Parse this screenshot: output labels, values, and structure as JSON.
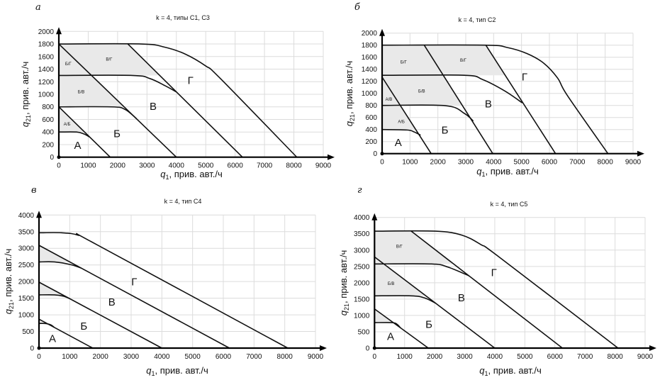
{
  "chart_data": [
    {
      "type": "line",
      "panel_letter": "а",
      "title": "k = 4, типы С1, С3",
      "xlabel": {
        "var": "q",
        "sub": "1",
        "rest": ", прив. авт./ч"
      },
      "ylabel": {
        "var": "q",
        "sub": "21",
        "rest": ", прив. авт./ч"
      },
      "xlim": [
        0,
        9000
      ],
      "ylim": [
        0,
        2000
      ],
      "xticks": [
        0,
        1000,
        2000,
        3000,
        4000,
        5000,
        6000,
        7000,
        8000,
        9000
      ],
      "yticks": [
        0,
        200,
        400,
        600,
        800,
        1000,
        1200,
        1400,
        1600,
        1800,
        2000
      ],
      "grid": true,
      "shaded": [
        [
          [
            0,
            1800
          ],
          [
            2350,
            1800
          ],
          [
            3433,
            1300
          ],
          [
            0,
            1300
          ]
        ],
        [
          [
            0,
            1300
          ],
          [
            1111,
            1300
          ],
          [
            2222,
            800
          ],
          [
            0,
            800
          ]
        ],
        [
          [
            0,
            800
          ],
          [
            875,
            400
          ],
          [
            0,
            400
          ]
        ]
      ],
      "series": [
        {
          "name": "А/Б boundary",
          "points": [
            [
              0,
              800
            ],
            [
              1750,
              0
            ]
          ]
        },
        {
          "name": "Б/В boundary",
          "points": [
            [
              0,
              1800
            ],
            [
              4000,
              0
            ]
          ]
        },
        {
          "name": "В/Г boundary",
          "points": [
            [
              2350,
              1800
            ],
            [
              6250,
              0
            ]
          ]
        },
        {
          "name": "А capacity",
          "points": [
            [
              0,
              400
            ],
            [
              600,
              400
            ],
            [
              850,
              370
            ],
            [
              1050,
              320
            ]
          ]
        },
        {
          "name": "Б capacity",
          "points": [
            [
              0,
              800
            ],
            [
              1800,
              800
            ],
            [
              2250,
              760
            ],
            [
              2650,
              610
            ]
          ]
        },
        {
          "name": "В capacity",
          "points": [
            [
              0,
              1300
            ],
            [
              2500,
              1300
            ],
            [
              3100,
              1250
            ],
            [
              3600,
              1140
            ],
            [
              4000,
              1038
            ]
          ]
        },
        {
          "name": "Г capacity",
          "points": [
            [
              0,
              1800
            ],
            [
              2800,
              1800
            ],
            [
              3600,
              1750
            ],
            [
              4300,
              1640
            ],
            [
              5000,
              1450
            ],
            [
              5500,
              1250
            ],
            [
              8100,
              0
            ]
          ]
        }
      ],
      "labels": [
        {
          "text": "А",
          "x": 640,
          "y": 190,
          "size": "big"
        },
        {
          "text": "Б",
          "x": 1980,
          "y": 376,
          "size": "big"
        },
        {
          "text": "В",
          "x": 3210,
          "y": 808,
          "size": "big"
        },
        {
          "text": "Г",
          "x": 4480,
          "y": 1222,
          "size": "big"
        },
        {
          "text": "Б/Г",
          "x": 320,
          "y": 1485,
          "size": "small"
        },
        {
          "text": "В/Г",
          "x": 1710,
          "y": 1560,
          "size": "small"
        },
        {
          "text": "Б/В",
          "x": 760,
          "y": 1041,
          "size": "small"
        },
        {
          "text": "А/Б",
          "x": 280,
          "y": 526,
          "size": "small"
        }
      ]
    },
    {
      "type": "line",
      "panel_letter": "б",
      "title": "k = 4, тип С2",
      "xlabel": {
        "var": "q",
        "sub": "1",
        "rest": ", прив. авт./ч"
      },
      "ylabel": {
        "var": "q",
        "sub": "21",
        "rest": ", прив. авт./ч"
      },
      "xlim": [
        0,
        9000
      ],
      "ylim": [
        0,
        2000
      ],
      "xticks": [
        0,
        1000,
        2000,
        3000,
        4000,
        5000,
        6000,
        7000,
        8000,
        9000
      ],
      "yticks": [
        0,
        200,
        400,
        600,
        800,
        1000,
        1200,
        1400,
        1600,
        1800,
        2000
      ],
      "grid": true,
      "shaded": [
        [
          [
            0,
            1800
          ],
          [
            3720,
            1800
          ],
          [
            4414,
            1300
          ],
          [
            0,
            1300
          ]
        ],
        [
          [
            0,
            1300
          ],
          [
            2193,
            1300
          ],
          [
            2876,
            800
          ],
          [
            0,
            800
          ]
        ],
        [
          [
            0,
            1270
          ],
          [
            651,
            800
          ],
          [
            1206,
            400
          ],
          [
            0,
            400
          ]
        ]
      ],
      "series": [
        {
          "name": "А boundary",
          "points": [
            [
              0,
              1270
            ],
            [
              1760,
              0
            ]
          ]
        },
        {
          "name": "Б/В boundary",
          "points": [
            [
              1510,
              1800
            ],
            [
              3970,
              0
            ]
          ]
        },
        {
          "name": "В/Г boundary",
          "points": [
            [
              3720,
              1800
            ],
            [
              6220,
              0
            ]
          ]
        },
        {
          "name": "А capacity",
          "points": [
            [
              0,
              400
            ],
            [
              900,
              392
            ],
            [
              1150,
              360
            ],
            [
              1380,
              306
            ]
          ]
        },
        {
          "name": "Б capacity",
          "points": [
            [
              0,
              800
            ],
            [
              2270,
              796
            ],
            [
              2950,
              667
            ],
            [
              3270,
              541
            ]
          ]
        },
        {
          "name": "В capacity",
          "points": [
            [
              0,
              1300
            ],
            [
              2950,
              1300
            ],
            [
              3600,
              1230
            ],
            [
              4400,
              1040
            ],
            [
              5025,
              843
            ]
          ]
        },
        {
          "name": "Г capacity",
          "points": [
            [
              0,
              1800
            ],
            [
              3700,
              1800
            ],
            [
              4500,
              1760
            ],
            [
              5200,
              1660
            ],
            [
              5800,
              1500
            ],
            [
              6300,
              1250
            ],
            [
              6650,
              960
            ],
            [
              8100,
              0
            ]
          ]
        }
      ],
      "labels": [
        {
          "text": "А",
          "x": 580,
          "y": 184,
          "size": "big"
        },
        {
          "text": "Б",
          "x": 2250,
          "y": 392,
          "size": "big"
        },
        {
          "text": "В",
          "x": 3810,
          "y": 824,
          "size": "big"
        },
        {
          "text": "Г",
          "x": 5110,
          "y": 1275,
          "size": "big"
        },
        {
          "text": "Б/Г",
          "x": 770,
          "y": 1518,
          "size": "small"
        },
        {
          "text": "В/Г",
          "x": 2910,
          "y": 1549,
          "size": "small"
        },
        {
          "text": "Б/В",
          "x": 1420,
          "y": 1039,
          "size": "small"
        },
        {
          "text": "А/В",
          "x": 240,
          "y": 902,
          "size": "small"
        },
        {
          "text": "А/Б",
          "x": 690,
          "y": 529,
          "size": "small"
        }
      ]
    },
    {
      "type": "line",
      "panel_letter": "в",
      "title": "k = 4, тип С4",
      "xlabel": {
        "var": "q",
        "sub": "1",
        "rest": ", прив. авт./ч"
      },
      "ylabel": {
        "var": "q",
        "sub": "21",
        "rest": ", прив. авт./ч"
      },
      "xlim": [
        0,
        9000
      ],
      "ylim": [
        0,
        4000
      ],
      "xticks": [
        0,
        1000,
        2000,
        3000,
        4000,
        5000,
        6000,
        7000,
        8000,
        9000
      ],
      "yticks": [
        0,
        500,
        1000,
        1500,
        2000,
        2500,
        3000,
        3500,
        4000
      ],
      "grid": true,
      "shaded": [
        [
          [
            0,
            3090
          ],
          [
            1023,
            2580
          ],
          [
            0,
            2580
          ]
        ],
        [
          [
            0,
            1982
          ],
          [
            771,
            1600
          ],
          [
            0,
            1600
          ]
        ],
        [
          [
            0,
            870
          ],
          [
            262,
            740
          ],
          [
            0,
            740
          ]
        ]
      ],
      "series": [
        {
          "name": "А/Б boundary",
          "points": [
            [
              0,
              870
            ],
            [
              1750,
              0
            ]
          ]
        },
        {
          "name": "Б/В boundary",
          "points": [
            [
              0,
              1982
            ],
            [
              4000,
              0
            ]
          ]
        },
        {
          "name": "В/Г boundary",
          "points": [
            [
              0,
              3090
            ],
            [
              6200,
              0
            ]
          ]
        },
        {
          "name": "А capacity",
          "points": [
            [
              0,
              740
            ],
            [
              200,
              740
            ],
            [
              380,
              700
            ],
            [
              500,
              620
            ]
          ]
        },
        {
          "name": "Б capacity",
          "points": [
            [
              0,
              1600
            ],
            [
              500,
              1600
            ],
            [
              800,
              1560
            ],
            [
              1000,
              1486
            ]
          ]
        },
        {
          "name": "В capacity",
          "points": [
            [
              0,
              2590
            ],
            [
              500,
              2590
            ],
            [
              1040,
              2507
            ],
            [
              1380,
              2402
            ]
          ]
        },
        {
          "name": "Г capacity",
          "points": [
            [
              0,
              3466
            ],
            [
              730,
              3466
            ],
            [
              1270,
              3395
            ],
            [
              1880,
              3110
            ],
            [
              8100,
              0
            ]
          ]
        }
      ],
      "labels": [
        {
          "text": "А",
          "x": 440,
          "y": 284,
          "size": "big"
        },
        {
          "text": "Б",
          "x": 1460,
          "y": 660,
          "size": "big"
        },
        {
          "text": "В",
          "x": 2370,
          "y": 1386,
          "size": "big"
        },
        {
          "text": "Г",
          "x": 3100,
          "y": 1990,
          "size": "big"
        }
      ]
    },
    {
      "type": "line",
      "panel_letter": "г",
      "title": "k = 4, тип С5",
      "xlabel": {
        "var": "q",
        "sub": "1",
        "rest": ", прив. авт./ч"
      },
      "ylabel": {
        "var": "q",
        "sub": "21",
        "rest": ", прив. авт./ч"
      },
      "xlim": [
        0,
        9000
      ],
      "ylim": [
        0,
        4000
      ],
      "xticks": [
        0,
        1000,
        2000,
        3000,
        4000,
        5000,
        6000,
        7000,
        8000,
        9000
      ],
      "yticks": [
        0,
        500,
        1000,
        1500,
        2000,
        2500,
        3000,
        3500,
        4000
      ],
      "grid": true,
      "shaded": [
        [
          [
            0,
            3580
          ],
          [
            1220,
            3580
          ],
          [
            2632,
            2575
          ],
          [
            0,
            2575
          ]
        ],
        [
          [
            0,
            2575
          ],
          [
            321,
            2575
          ],
          [
            1714,
            1600
          ],
          [
            0,
            1600
          ]
        ],
        [
          [
            0,
            1200
          ],
          [
            626,
            780
          ],
          [
            0,
            780
          ]
        ]
      ],
      "series": [
        {
          "name": "А/Б boundary",
          "points": [
            [
              0,
              1200
            ],
            [
              1790,
              0
            ]
          ]
        },
        {
          "name": "Б/В boundary",
          "points": [
            [
              0,
              2792
            ],
            [
              4000,
              0
            ]
          ]
        },
        {
          "name": "В/Г boundary",
          "points": [
            [
              1220,
              3580
            ],
            [
              6250,
              0
            ]
          ]
        },
        {
          "name": "А capacity",
          "points": [
            [
              0,
              780
            ],
            [
              590,
              780
            ],
            [
              750,
              730
            ],
            [
              860,
              623
            ]
          ]
        },
        {
          "name": "Б capacity",
          "points": [
            [
              0,
              1600
            ],
            [
              1220,
              1600
            ],
            [
              1650,
              1540
            ],
            [
              2040,
              1372
            ]
          ]
        },
        {
          "name": "В capacity",
          "points": [
            [
              0,
              2575
            ],
            [
              1890,
              2575
            ],
            [
              2440,
              2481
            ],
            [
              3140,
              2213
            ]
          ]
        },
        {
          "name": "Г capacity",
          "points": [
            [
              0,
              3580
            ],
            [
              2040,
              3580
            ],
            [
              2910,
              3457
            ],
            [
              3540,
              3168
            ],
            [
              4170,
              2770
            ],
            [
              8100,
              0
            ]
          ]
        }
      ],
      "labels": [
        {
          "text": "А",
          "x": 535,
          "y": 362,
          "size": "big"
        },
        {
          "text": "Б",
          "x": 1810,
          "y": 723,
          "size": "big"
        },
        {
          "text": "В",
          "x": 2890,
          "y": 1540,
          "size": "big"
        },
        {
          "text": "Г",
          "x": 3970,
          "y": 2315,
          "size": "big"
        },
        {
          "text": "В/Г",
          "x": 825,
          "y": 3110,
          "size": "small"
        },
        {
          "text": "Б/В",
          "x": 550,
          "y": 1975,
          "size": "small"
        }
      ]
    }
  ],
  "colors": {
    "line": "#111111",
    "grid": "#dcdcdc",
    "shade": "#e9e9e9"
  }
}
